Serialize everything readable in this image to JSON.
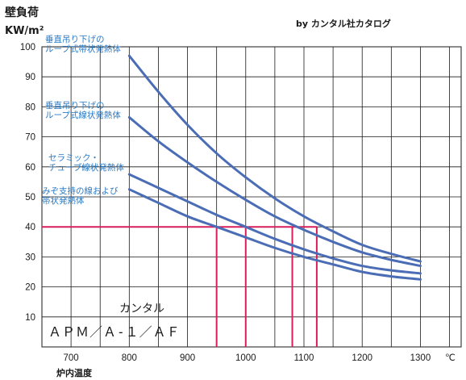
{
  "chart_data": {
    "type": "line",
    "title": "",
    "source_note": "by カンタル社カタログ",
    "ylabel_line1": "壁負荷",
    "ylabel_line2": "KW/m²",
    "xlabel": "炉内温度",
    "x_unit": "℃",
    "xlim": [
      650,
      1370
    ],
    "ylim": [
      0,
      100
    ],
    "x_ticks": [
      "700",
      "800",
      "900",
      "1000",
      "1100",
      "1200",
      "1300"
    ],
    "y_ticks": [
      "10",
      "20",
      "30",
      "40",
      "50",
      "60",
      "70",
      "80",
      "90",
      "100"
    ],
    "series": [
      {
        "name": "垂直吊り下げのループ式帯状発熱体",
        "label_lines": [
          "垂直吊り下げの",
          "ループ式帯状発熱体"
        ],
        "color": "#4a6db5",
        "x": [
          800,
          850,
          900,
          950,
          1000,
          1050,
          1100,
          1150,
          1200,
          1250,
          1300
        ],
        "y": [
          97,
          85,
          74,
          64.5,
          56.5,
          49.5,
          43.5,
          38.5,
          34,
          31,
          28.5
        ]
      },
      {
        "name": "垂直吊り下げのループ式線状発熱体",
        "label_lines": [
          "垂直吊り下げの",
          "ループ式線状発熱体"
        ],
        "color": "#4a6db5",
        "x": [
          800,
          850,
          900,
          950,
          1000,
          1050,
          1100,
          1150,
          1200,
          1250,
          1300
        ],
        "y": [
          76.5,
          68.5,
          61.5,
          55,
          49,
          43.5,
          39,
          35,
          31.5,
          29,
          27
        ]
      },
      {
        "name": "セラミック・チューブ線状発熱体",
        "label_lines": [
          "セラミック・",
          "チューブ線状発熱体"
        ],
        "color": "#4a6db5",
        "x": [
          800,
          850,
          900,
          950,
          1000,
          1050,
          1100,
          1150,
          1200,
          1250,
          1300
        ],
        "y": [
          57.5,
          53,
          48.5,
          44,
          40,
          36,
          32.5,
          29.5,
          27,
          25.5,
          24.5
        ]
      },
      {
        "name": "みぞ支持の線および帯状発熱体",
        "label_lines": [
          "みぞ支持の線および",
          "帯状発熱体"
        ],
        "color": "#4a6db5",
        "x": [
          800,
          850,
          900,
          950,
          1000,
          1050,
          1100,
          1150,
          1200,
          1250,
          1300
        ],
        "y": [
          52.5,
          48,
          43.5,
          40,
          36.5,
          33,
          30,
          27.5,
          25,
          23.5,
          22.5
        ]
      }
    ],
    "reference": {
      "color": "#d81e5b",
      "y": 40,
      "x_values": [
        950,
        1000,
        1080,
        1122
      ]
    },
    "grid": true,
    "legend": "inline labels at left of curves"
  },
  "brand": {
    "name": "カンタル",
    "models": "ＡＰＭ／Ａ-１／ＡＦ"
  }
}
